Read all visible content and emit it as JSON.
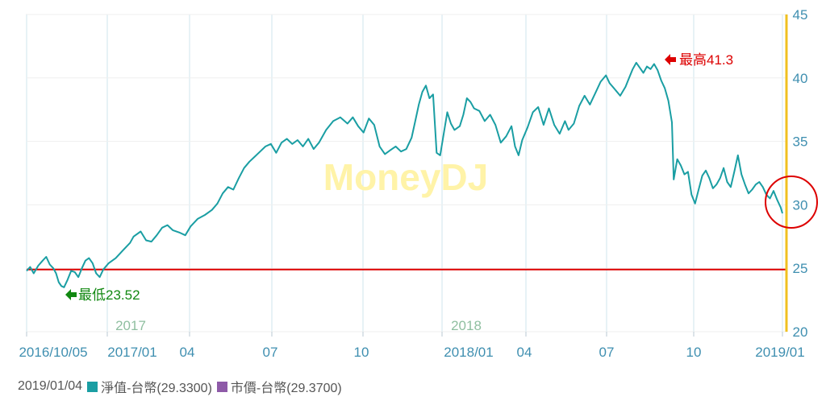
{
  "chart_data": {
    "type": "line",
    "watermark": "MoneyDJ",
    "x_tick_labels": [
      "2016/10/05",
      "2017/01",
      "04",
      "07",
      "10",
      "2018/01",
      "04",
      "07",
      "10",
      "2019/01"
    ],
    "year_labels": [
      "2017",
      "2018"
    ],
    "y_tick_labels": [
      "20",
      "25",
      "30",
      "35",
      "40",
      "45"
    ],
    "ylim": [
      20,
      45
    ],
    "grid": true,
    "y_axis_side": "right",
    "reference_line": 24.9,
    "max_label": "最高41.3",
    "min_label": "最低23.52",
    "legend": {
      "date": "2019/01/04",
      "nav_label": "淨值-台幣(29.3300)",
      "price_label": "市價-台幣(29.3700)"
    },
    "colors": {
      "nav": "#1a9ea3",
      "price": "#8e5aa8",
      "reference": "#dd0000",
      "max": "#dd0000",
      "min": "#118811",
      "grid": "#cfe6ee",
      "axis_text": "#3f8fb0",
      "year_text": "#8fbfa0",
      "current_marker": "#f0c020",
      "highlight_circle": "#dd0000",
      "watermark": "#fff3a8"
    },
    "series": [
      {
        "values_approx": [
          [
            0,
            24.8
          ],
          [
            4,
            25.1
          ],
          [
            8,
            24.6
          ],
          [
            13,
            25.2
          ],
          [
            18,
            25.6
          ],
          [
            22,
            25.9
          ],
          [
            26,
            25.3
          ],
          [
            30,
            25.0
          ],
          [
            33,
            24.6
          ],
          [
            36,
            23.9
          ],
          [
            39,
            23.6
          ],
          [
            42,
            23.5
          ],
          [
            46,
            24.1
          ],
          [
            50,
            24.8
          ],
          [
            54,
            24.7
          ],
          [
            58,
            24.3
          ],
          [
            62,
            25.0
          ],
          [
            66,
            25.6
          ],
          [
            70,
            25.8
          ],
          [
            74,
            25.4
          ],
          [
            78,
            24.6
          ],
          [
            82,
            24.3
          ],
          [
            86,
            24.9
          ],
          [
            92,
            25.4
          ],
          [
            100,
            25.8
          ],
          [
            108,
            26.4
          ],
          [
            116,
            27.0
          ],
          [
            120,
            27.5
          ],
          [
            128,
            27.9
          ],
          [
            134,
            27.2
          ],
          [
            140,
            27.1
          ],
          [
            146,
            27.6
          ],
          [
            152,
            28.2
          ],
          [
            158,
            28.4
          ],
          [
            164,
            28.0
          ],
          [
            172,
            27.8
          ],
          [
            178,
            27.6
          ],
          [
            184,
            28.3
          ],
          [
            192,
            28.9
          ],
          [
            200,
            29.2
          ],
          [
            208,
            29.6
          ],
          [
            214,
            30.1
          ],
          [
            220,
            30.9
          ],
          [
            226,
            31.4
          ],
          [
            232,
            31.2
          ],
          [
            238,
            32.1
          ],
          [
            244,
            32.9
          ],
          [
            250,
            33.4
          ],
          [
            256,
            33.8
          ],
          [
            262,
            34.2
          ],
          [
            268,
            34.6
          ],
          [
            274,
            34.8
          ],
          [
            280,
            34.1
          ],
          [
            286,
            34.9
          ],
          [
            292,
            35.2
          ],
          [
            298,
            34.8
          ],
          [
            304,
            35.1
          ],
          [
            310,
            34.6
          ],
          [
            316,
            35.2
          ],
          [
            322,
            34.4
          ],
          [
            328,
            34.9
          ],
          [
            336,
            35.9
          ],
          [
            344,
            36.6
          ],
          [
            352,
            36.9
          ],
          [
            360,
            36.4
          ],
          [
            366,
            36.9
          ],
          [
            372,
            36.2
          ],
          [
            378,
            35.7
          ],
          [
            384,
            36.8
          ],
          [
            390,
            36.3
          ],
          [
            396,
            34.6
          ],
          [
            402,
            34.0
          ],
          [
            408,
            34.3
          ],
          [
            414,
            34.6
          ],
          [
            420,
            34.2
          ],
          [
            426,
            34.4
          ],
          [
            432,
            35.3
          ],
          [
            436,
            36.6
          ],
          [
            440,
            37.9
          ],
          [
            444,
            38.9
          ],
          [
            448,
            39.4
          ],
          [
            452,
            38.4
          ],
          [
            456,
            38.7
          ],
          [
            460,
            34.1
          ],
          [
            464,
            33.9
          ],
          [
            468,
            35.6
          ],
          [
            472,
            37.3
          ],
          [
            476,
            36.4
          ],
          [
            480,
            35.9
          ],
          [
            486,
            36.2
          ],
          [
            490,
            37.1
          ],
          [
            494,
            38.4
          ],
          [
            498,
            38.1
          ],
          [
            502,
            37.6
          ],
          [
            508,
            37.4
          ],
          [
            514,
            36.6
          ],
          [
            520,
            37.1
          ],
          [
            526,
            36.3
          ],
          [
            532,
            34.9
          ],
          [
            538,
            35.4
          ],
          [
            544,
            36.2
          ],
          [
            548,
            34.6
          ],
          [
            552,
            33.9
          ],
          [
            556,
            35.1
          ],
          [
            562,
            36.1
          ],
          [
            568,
            37.3
          ],
          [
            574,
            37.7
          ],
          [
            580,
            36.3
          ],
          [
            586,
            37.6
          ],
          [
            592,
            36.3
          ],
          [
            598,
            35.6
          ],
          [
            604,
            36.6
          ],
          [
            608,
            35.9
          ],
          [
            614,
            36.4
          ],
          [
            620,
            37.8
          ],
          [
            626,
            38.6
          ],
          [
            632,
            37.9
          ],
          [
            638,
            38.8
          ],
          [
            644,
            39.7
          ],
          [
            650,
            40.2
          ],
          [
            654,
            39.6
          ],
          [
            660,
            39.1
          ],
          [
            666,
            38.6
          ],
          [
            672,
            39.3
          ],
          [
            676,
            40.0
          ],
          [
            680,
            40.7
          ],
          [
            684,
            41.2
          ],
          [
            688,
            40.8
          ],
          [
            692,
            40.4
          ],
          [
            696,
            40.9
          ],
          [
            700,
            40.7
          ],
          [
            704,
            41.1
          ],
          [
            708,
            40.6
          ],
          [
            712,
            39.8
          ],
          [
            716,
            39.2
          ],
          [
            720,
            38.2
          ],
          [
            724,
            36.5
          ],
          [
            726,
            32.0
          ],
          [
            730,
            33.6
          ],
          [
            734,
            33.1
          ],
          [
            738,
            32.4
          ],
          [
            742,
            32.6
          ],
          [
            746,
            30.8
          ],
          [
            750,
            30.1
          ],
          [
            754,
            31.2
          ],
          [
            758,
            32.3
          ],
          [
            762,
            32.7
          ],
          [
            766,
            32.1
          ],
          [
            770,
            31.3
          ],
          [
            774,
            31.6
          ],
          [
            778,
            32.1
          ],
          [
            782,
            32.9
          ],
          [
            786,
            31.8
          ],
          [
            790,
            31.4
          ],
          [
            794,
            32.6
          ],
          [
            798,
            33.9
          ],
          [
            802,
            32.4
          ],
          [
            806,
            31.6
          ],
          [
            810,
            30.9
          ],
          [
            814,
            31.2
          ],
          [
            818,
            31.6
          ],
          [
            822,
            31.8
          ],
          [
            826,
            31.4
          ],
          [
            830,
            30.8
          ],
          [
            834,
            30.5
          ],
          [
            838,
            31.1
          ],
          [
            842,
            30.4
          ],
          [
            846,
            29.8
          ],
          [
            848,
            29.33
          ]
        ]
      }
    ]
  }
}
